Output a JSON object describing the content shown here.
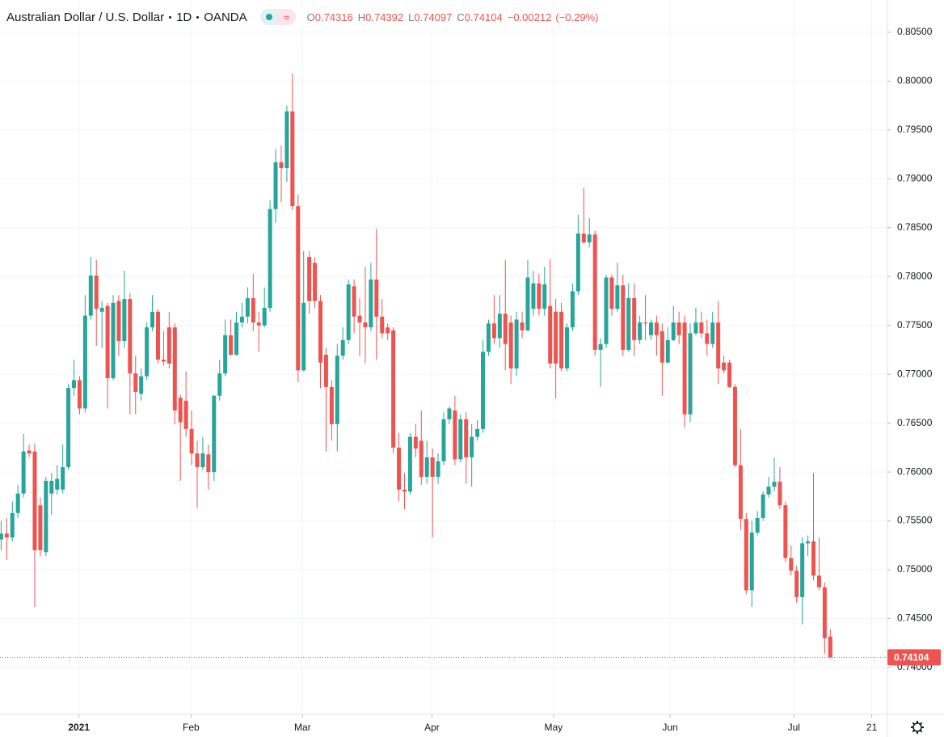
{
  "chart_data": {
    "type": "candlestick",
    "title": "Australian Dollar / U.S. Dollar",
    "interval": "1D",
    "source": "OANDA",
    "ohlc_labels": [
      "O",
      "H",
      "L",
      "C"
    ],
    "change": {
      "value": -0.00212,
      "label": "−0.00212"
    },
    "change_pct": {
      "value": -0.29,
      "label": "(−0.29%)"
    },
    "up_color": "#26a69a",
    "down_color": "#ef5350",
    "grid": true,
    "x": [
      0,
      1,
      2,
      3,
      4,
      5,
      6,
      7,
      8,
      9,
      10,
      11,
      12,
      13,
      14,
      15,
      16,
      17,
      18,
      19,
      20,
      21,
      22,
      23,
      24,
      25,
      26,
      27,
      28,
      29,
      30,
      31,
      32,
      33,
      34,
      35,
      36,
      37,
      38,
      39,
      40,
      41,
      42,
      43,
      44,
      45,
      46,
      47,
      48,
      49,
      50,
      51,
      52,
      53,
      54,
      55,
      56,
      57,
      58,
      59,
      60,
      61,
      62,
      63,
      64,
      65,
      66,
      67,
      68,
      69,
      70,
      71,
      72,
      73,
      74,
      75,
      76,
      77,
      78,
      79,
      80,
      81,
      82,
      83,
      84,
      85,
      86,
      87,
      88,
      89,
      90,
      91,
      92,
      93,
      94,
      95,
      96,
      97,
      98,
      99,
      100,
      101,
      102,
      103,
      104,
      105,
      106,
      107,
      108,
      109,
      110,
      111,
      112,
      113,
      114,
      115,
      116,
      117,
      118,
      119,
      120,
      121,
      122,
      123,
      124,
      125,
      126,
      127,
      128,
      129,
      130,
      131,
      132,
      133,
      134,
      135,
      136,
      137,
      138,
      139,
      140,
      141,
      142,
      143,
      144,
      145,
      146,
      147,
      148
    ],
    "open": [
      0.7531,
      0.7537,
      0.7533,
      0.7558,
      0.7578,
      0.7622,
      0.7621,
      0.7566,
      0.7518,
      0.7578,
      0.7582,
      0.7582,
      0.7605,
      0.7686,
      0.7694,
      0.7665,
      0.776,
      0.7801,
      0.7764,
      0.777,
      0.7696,
      0.7775,
      0.7734,
      0.7777,
      0.7701,
      0.768,
      0.7698,
      0.7748,
      0.7764,
      0.7715,
      0.7748,
      0.7748,
      0.7676,
      0.7673,
      0.7644,
      0.7619,
      0.7605,
      0.7618,
      0.76,
      0.7678,
      0.7701,
      0.774,
      0.772,
      0.7753,
      0.7759,
      0.7778,
      0.7753,
      0.775,
      0.7768,
      0.7869,
      0.7917,
      0.7911,
      0.7969,
      0.7872,
      0.7704,
      0.782,
      0.7814,
      0.7775,
      0.772,
      0.7687,
      0.7649,
      0.7719,
      0.7735,
      0.779,
      0.776,
      0.7753,
      0.7748,
      0.7797,
      0.7759,
      0.7748,
      0.7745,
      0.7625,
      0.7582,
      0.758,
      0.7636,
      0.7632,
      0.7595,
      0.7615,
      0.7595,
      0.7611,
      0.7654,
      0.7663,
      0.7613,
      0.7654,
      0.7615,
      0.7636,
      0.7644,
      0.7723,
      0.7752,
      0.7737,
      0.7762,
      0.7753,
      0.7706,
      0.7753,
      0.7745,
      0.7767,
      0.7793,
      0.7767,
      0.777,
      0.7764,
      0.7764,
      0.7706,
      0.7748,
      0.7785,
      0.7844,
      0.7835,
      0.7843,
      0.7725,
      0.7731,
      0.7799,
      0.7767,
      0.7791,
      0.7725,
      0.7778,
      0.7735,
      0.7753,
      0.774,
      0.7753,
      0.7744,
      0.7712,
      0.7735,
      0.7753,
      0.7753,
      0.7659,
      0.7742,
      0.7753,
      0.7742,
      0.7731,
      0.7753,
      0.7712,
      0.7712,
      0.7687,
      0.7607,
      0.7552,
      0.7479,
      0.7538,
      0.7553,
      0.7577,
      0.7585,
      0.759,
      0.7566,
      0.7512,
      0.7499,
      0.7472,
      0.7527,
      0.7529,
      0.7494,
      0.7482,
      0.74316
    ],
    "high": [
      0.755,
      0.7553,
      0.757,
      0.7587,
      0.7639,
      0.7628,
      0.7629,
      0.7574,
      0.7595,
      0.7599,
      0.7607,
      0.7628,
      0.769,
      0.7715,
      0.7698,
      0.7781,
      0.782,
      0.7817,
      0.7775,
      0.7773,
      0.7781,
      0.7781,
      0.7806,
      0.7783,
      0.7719,
      0.7706,
      0.7753,
      0.7781,
      0.7767,
      0.7744,
      0.7764,
      0.7752,
      0.7679,
      0.7703,
      0.7663,
      0.7632,
      0.7636,
      0.7628,
      0.7679,
      0.7715,
      0.7756,
      0.7756,
      0.7764,
      0.7773,
      0.7789,
      0.7803,
      0.7764,
      0.7789,
      0.7878,
      0.793,
      0.7934,
      0.7975,
      0.8008,
      0.7884,
      0.7826,
      0.7826,
      0.782,
      0.7781,
      0.7727,
      0.7694,
      0.7731,
      0.7748,
      0.7797,
      0.7797,
      0.7778,
      0.781,
      0.7814,
      0.7849,
      0.7777,
      0.7752,
      0.7748,
      0.764,
      0.7599,
      0.764,
      0.7649,
      0.7663,
      0.7632,
      0.7624,
      0.7619,
      0.7661,
      0.7667,
      0.7678,
      0.7659,
      0.7661,
      0.7649,
      0.7653,
      0.7735,
      0.7756,
      0.7781,
      0.7781,
      0.7817,
      0.776,
      0.7764,
      0.7764,
      0.7817,
      0.7806,
      0.7803,
      0.781,
      0.7818,
      0.7777,
      0.7773,
      0.7752,
      0.7793,
      0.7863,
      0.7891,
      0.786,
      0.7847,
      0.7737,
      0.7802,
      0.7802,
      0.7814,
      0.7802,
      0.7793,
      0.7793,
      0.776,
      0.7781,
      0.7756,
      0.776,
      0.7752,
      0.7748,
      0.777,
      0.7764,
      0.776,
      0.7752,
      0.7768,
      0.7764,
      0.7756,
      0.7764,
      0.7775,
      0.7719,
      0.7715,
      0.769,
      0.7644,
      0.7558,
      0.755,
      0.756,
      0.758,
      0.7595,
      0.7615,
      0.7605,
      0.757,
      0.7525,
      0.7504,
      0.7533,
      0.7535,
      0.7599,
      0.7533,
      0.7487,
      0.74392
    ],
    "low": [
      0.752,
      0.751,
      0.7529,
      0.7553,
      0.7574,
      0.7615,
      0.7462,
      0.7514,
      0.7514,
      0.7556,
      0.7577,
      0.7578,
      0.7602,
      0.7678,
      0.7659,
      0.7661,
      0.7756,
      0.7729,
      0.7727,
      0.7665,
      0.7694,
      0.7719,
      0.7727,
      0.7659,
      0.7659,
      0.7673,
      0.7694,
      0.7744,
      0.7711,
      0.7709,
      0.7706,
      0.7649,
      0.7591,
      0.7636,
      0.7607,
      0.7563,
      0.7602,
      0.7582,
      0.7591,
      0.7673,
      0.7698,
      0.7719,
      0.7719,
      0.7748,
      0.7752,
      0.7744,
      0.7723,
      0.7748,
      0.7764,
      0.7855,
      0.7876,
      0.7897,
      0.7868,
      0.7692,
      0.7703,
      0.7762,
      0.7768,
      0.7686,
      0.7621,
      0.7632,
      0.7621,
      0.7715,
      0.7731,
      0.7742,
      0.7719,
      0.7711,
      0.7744,
      0.7715,
      0.7737,
      0.7735,
      0.7619,
      0.757,
      0.7562,
      0.7577,
      0.7615,
      0.7587,
      0.7588,
      0.7533,
      0.7588,
      0.7607,
      0.7649,
      0.7607,
      0.761,
      0.7588,
      0.7585,
      0.7632,
      0.764,
      0.7719,
      0.7731,
      0.7727,
      0.7704,
      0.769,
      0.7698,
      0.7737,
      0.7744,
      0.776,
      0.776,
      0.776,
      0.7706,
      0.7675,
      0.7703,
      0.7703,
      0.7744,
      0.7781,
      0.7833,
      0.783,
      0.7719,
      0.7687,
      0.7727,
      0.776,
      0.7764,
      0.7719,
      0.7723,
      0.7719,
      0.7731,
      0.7735,
      0.7735,
      0.7719,
      0.7678,
      0.7711,
      0.7734,
      0.7731,
      0.7646,
      0.7651,
      0.774,
      0.7737,
      0.7719,
      0.7727,
      0.769,
      0.7701,
      0.7686,
      0.7605,
      0.7541,
      0.7475,
      0.7462,
      0.7535,
      0.755,
      0.7574,
      0.758,
      0.7562,
      0.7508,
      0.7494,
      0.7466,
      0.7444,
      0.7514,
      0.7489,
      0.7479,
      0.7414,
      0.74097
    ],
    "close": [
      0.7537,
      0.7533,
      0.7558,
      0.7578,
      0.7621,
      0.7619,
      0.752,
      0.752,
      0.7591,
      0.7591,
      0.7593,
      0.7605,
      0.7686,
      0.7694,
      0.7665,
      0.776,
      0.7801,
      0.7767,
      0.7768,
      0.7696,
      0.7773,
      0.7734,
      0.7777,
      0.7701,
      0.7682,
      0.7698,
      0.7748,
      0.7764,
      0.7715,
      0.7713,
      0.7711,
      0.7663,
      0.7651,
      0.7644,
      0.7619,
      0.7605,
      0.7619,
      0.76,
      0.7678,
      0.7701,
      0.774,
      0.772,
      0.7753,
      0.7759,
      0.7778,
      0.7753,
      0.775,
      0.7768,
      0.7869,
      0.7917,
      0.7911,
      0.7969,
      0.7872,
      0.7704,
      0.7773,
      0.7775,
      0.7775,
      0.7712,
      0.7687,
      0.7649,
      0.7719,
      0.7735,
      0.7792,
      0.7759,
      0.7753,
      0.7748,
      0.7797,
      0.7759,
      0.7742,
      0.7742,
      0.7625,
      0.7582,
      0.758,
      0.7636,
      0.7624,
      0.7595,
      0.7615,
      0.7595,
      0.7611,
      0.7654,
      0.7665,
      0.7613,
      0.7654,
      0.7615,
      0.7636,
      0.7644,
      0.7723,
      0.7752,
      0.7737,
      0.7762,
      0.7731,
      0.7706,
      0.7756,
      0.7745,
      0.7799,
      0.7793,
      0.7767,
      0.7792,
      0.7711,
      0.7711,
      0.7706,
      0.7748,
      0.7785,
      0.7844,
      0.7835,
      0.7843,
      0.7725,
      0.7731,
      0.7799,
      0.7767,
      0.7791,
      0.7725,
      0.7778,
      0.7735,
      0.7753,
      0.7752,
      0.7753,
      0.774,
      0.7712,
      0.7735,
      0.7753,
      0.774,
      0.7659,
      0.7742,
      0.7753,
      0.7742,
      0.7731,
      0.7753,
      0.7706,
      0.7704,
      0.7687,
      0.7607,
      0.7552,
      0.7479,
      0.7538,
      0.7553,
      0.7577,
      0.7585,
      0.759,
      0.7566,
      0.7512,
      0.7499,
      0.7472,
      0.7527,
      0.7529,
      0.7494,
      0.7482,
      0.743,
      0.74104
    ],
    "xlim": [
      -0.2,
      158.2
    ],
    "xticks": [
      {
        "value": 13.9,
        "label": "2021"
      },
      {
        "value": 33.9,
        "label": "Feb"
      },
      {
        "value": 53.8,
        "label": "Mar"
      },
      {
        "value": 76.9,
        "label": "Apr"
      },
      {
        "value": 98.6,
        "label": "May"
      },
      {
        "value": 119.4,
        "label": "Jun"
      },
      {
        "value": 141.5,
        "label": "Jul"
      },
      {
        "value": 155.4,
        "label": "21"
      }
    ],
    "ylim": [
      0.7352,
      0.8083
    ],
    "yticks": [
      {
        "value": 0.74,
        "label": "0.74000"
      },
      {
        "value": 0.745,
        "label": "0.74500"
      },
      {
        "value": 0.75,
        "label": "0.75000"
      },
      {
        "value": 0.755,
        "label": "0.75500"
      },
      {
        "value": 0.76,
        "label": "0.76000"
      },
      {
        "value": 0.765,
        "label": "0.76500"
      },
      {
        "value": 0.77,
        "label": "0.77000"
      },
      {
        "value": 0.775,
        "label": "0.77500"
      },
      {
        "value": 0.78,
        "label": "0.78000"
      },
      {
        "value": 0.785,
        "label": "0.78500"
      },
      {
        "value": 0.79,
        "label": "0.79000"
      },
      {
        "value": 0.795,
        "label": "0.79500"
      },
      {
        "value": 0.8,
        "label": "0.80000"
      },
      {
        "value": 0.805,
        "label": "0.80500"
      }
    ]
  }
}
